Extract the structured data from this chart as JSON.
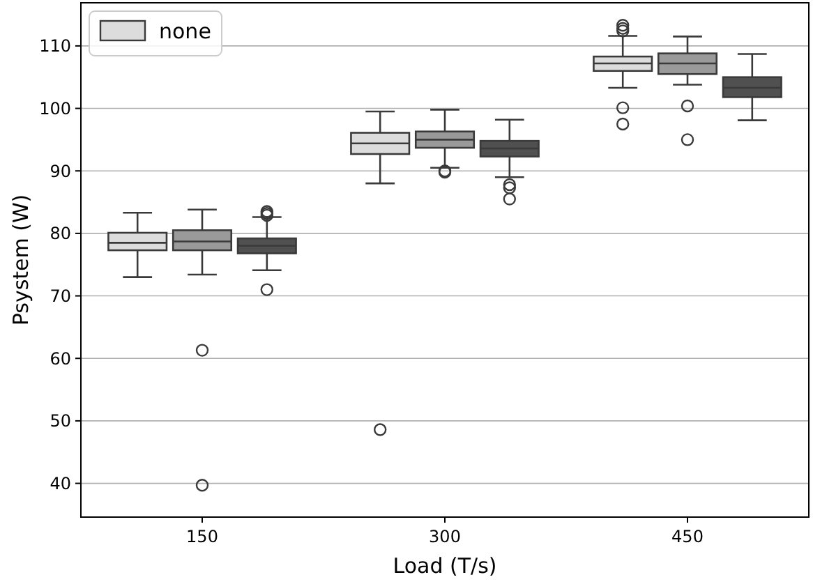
{
  "chart_data": {
    "type": "box",
    "xlabel": "Load (T/s)",
    "ylabel": "Psystem (W)",
    "categories": [
      "150",
      "300",
      "450"
    ],
    "ylim": [
      34.6,
      116.9
    ],
    "yticks": [
      40,
      50,
      60,
      70,
      80,
      90,
      100,
      110
    ],
    "grid": "y",
    "legend": "top left",
    "series": [
      {
        "name": "none",
        "color": "#dcdcdc",
        "boxes": [
          {
            "low": 73,
            "q1": 77.3,
            "median": 78.5,
            "q3": 80.1,
            "high": 83.3
          },
          {
            "low": 88,
            "q1": 92.7,
            "median": 94.4,
            "q3": 96.1,
            "high": 99.5,
            "outliers": [
              48.6
            ]
          },
          {
            "low": 103.3,
            "q1": 106,
            "median": 107.2,
            "q3": 108.3,
            "high": 111.6,
            "outliers": [
              113.3,
              112.8,
              112.4,
              100.1,
              97.5
            ]
          }
        ]
      },
      {
        "color": "#9a9a9a",
        "boxes": [
          {
            "low": 73.4,
            "q1": 77.3,
            "median": 78.7,
            "q3": 80.5,
            "high": 83.8,
            "outliers": [
              61.3,
              39.7
            ]
          },
          {
            "low": 90.5,
            "q1": 93.7,
            "median": 95,
            "q3": 96.3,
            "high": 99.8,
            "outliers": [
              90,
              89.8
            ]
          },
          {
            "low": 103.8,
            "q1": 105.5,
            "median": 107.2,
            "q3": 108.8,
            "high": 111.5,
            "outliers": [
              100.4,
              95
            ]
          }
        ]
      },
      {
        "color": "#505050",
        "boxes": [
          {
            "low": 74.1,
            "q1": 76.8,
            "median": 78,
            "q3": 79.2,
            "high": 82.6,
            "outliers": [
              83.5,
              83.2,
              82.9,
              71
            ]
          },
          {
            "low": 89,
            "q1": 92.3,
            "median": 93.6,
            "q3": 94.8,
            "high": 98.2,
            "outliers": [
              87.8,
              87.3,
              85.5
            ]
          },
          {
            "low": 98.1,
            "q1": 101.8,
            "median": 103.3,
            "q3": 105,
            "high": 108.7
          }
        ]
      }
    ]
  }
}
